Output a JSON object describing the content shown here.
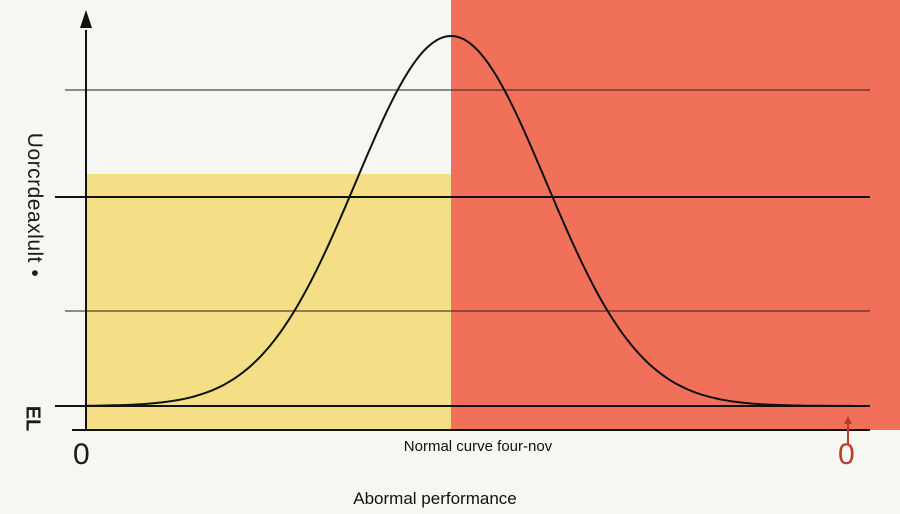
{
  "labels": {
    "y_axis": "Uorcrdeaxlult •",
    "y_min": "ЕL",
    "x_origin": "0",
    "x_end": "0",
    "x_label_primary": "Normal curve four-nov",
    "x_label_secondary": "Abormal performance"
  },
  "colors": {
    "background": "#f6f6f2",
    "normal_region": "#f4df86",
    "abnormal_region": "#f1705a",
    "curve": "#111111",
    "end_marker": "#c0392b"
  }
}
